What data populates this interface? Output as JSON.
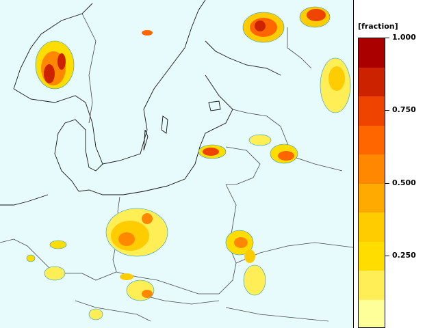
{
  "legend": {
    "unit_label": "[fraction]",
    "tick_labels": [
      "1.000",
      "0.750",
      "0.500",
      "0.250"
    ],
    "tick_values": [
      1.0,
      0.75,
      0.5,
      0.25
    ],
    "range": [
      0.0,
      1.0
    ],
    "colors": [
      "#ffff99",
      "#ffee55",
      "#ffdd00",
      "#ffcc00",
      "#ffaa00",
      "#ff8800",
      "#ff6600",
      "#ee4400",
      "#cc2200",
      "#aa0000"
    ],
    "levels": [
      0.1,
      0.2,
      0.3,
      0.4,
      0.5,
      0.6,
      0.7,
      0.8,
      0.9,
      1.0
    ]
  },
  "map": {
    "background_color": "#e8fbfc",
    "coastline_color": "#000000",
    "border_color": "#444444",
    "contour_color": "#2299cc"
  }
}
